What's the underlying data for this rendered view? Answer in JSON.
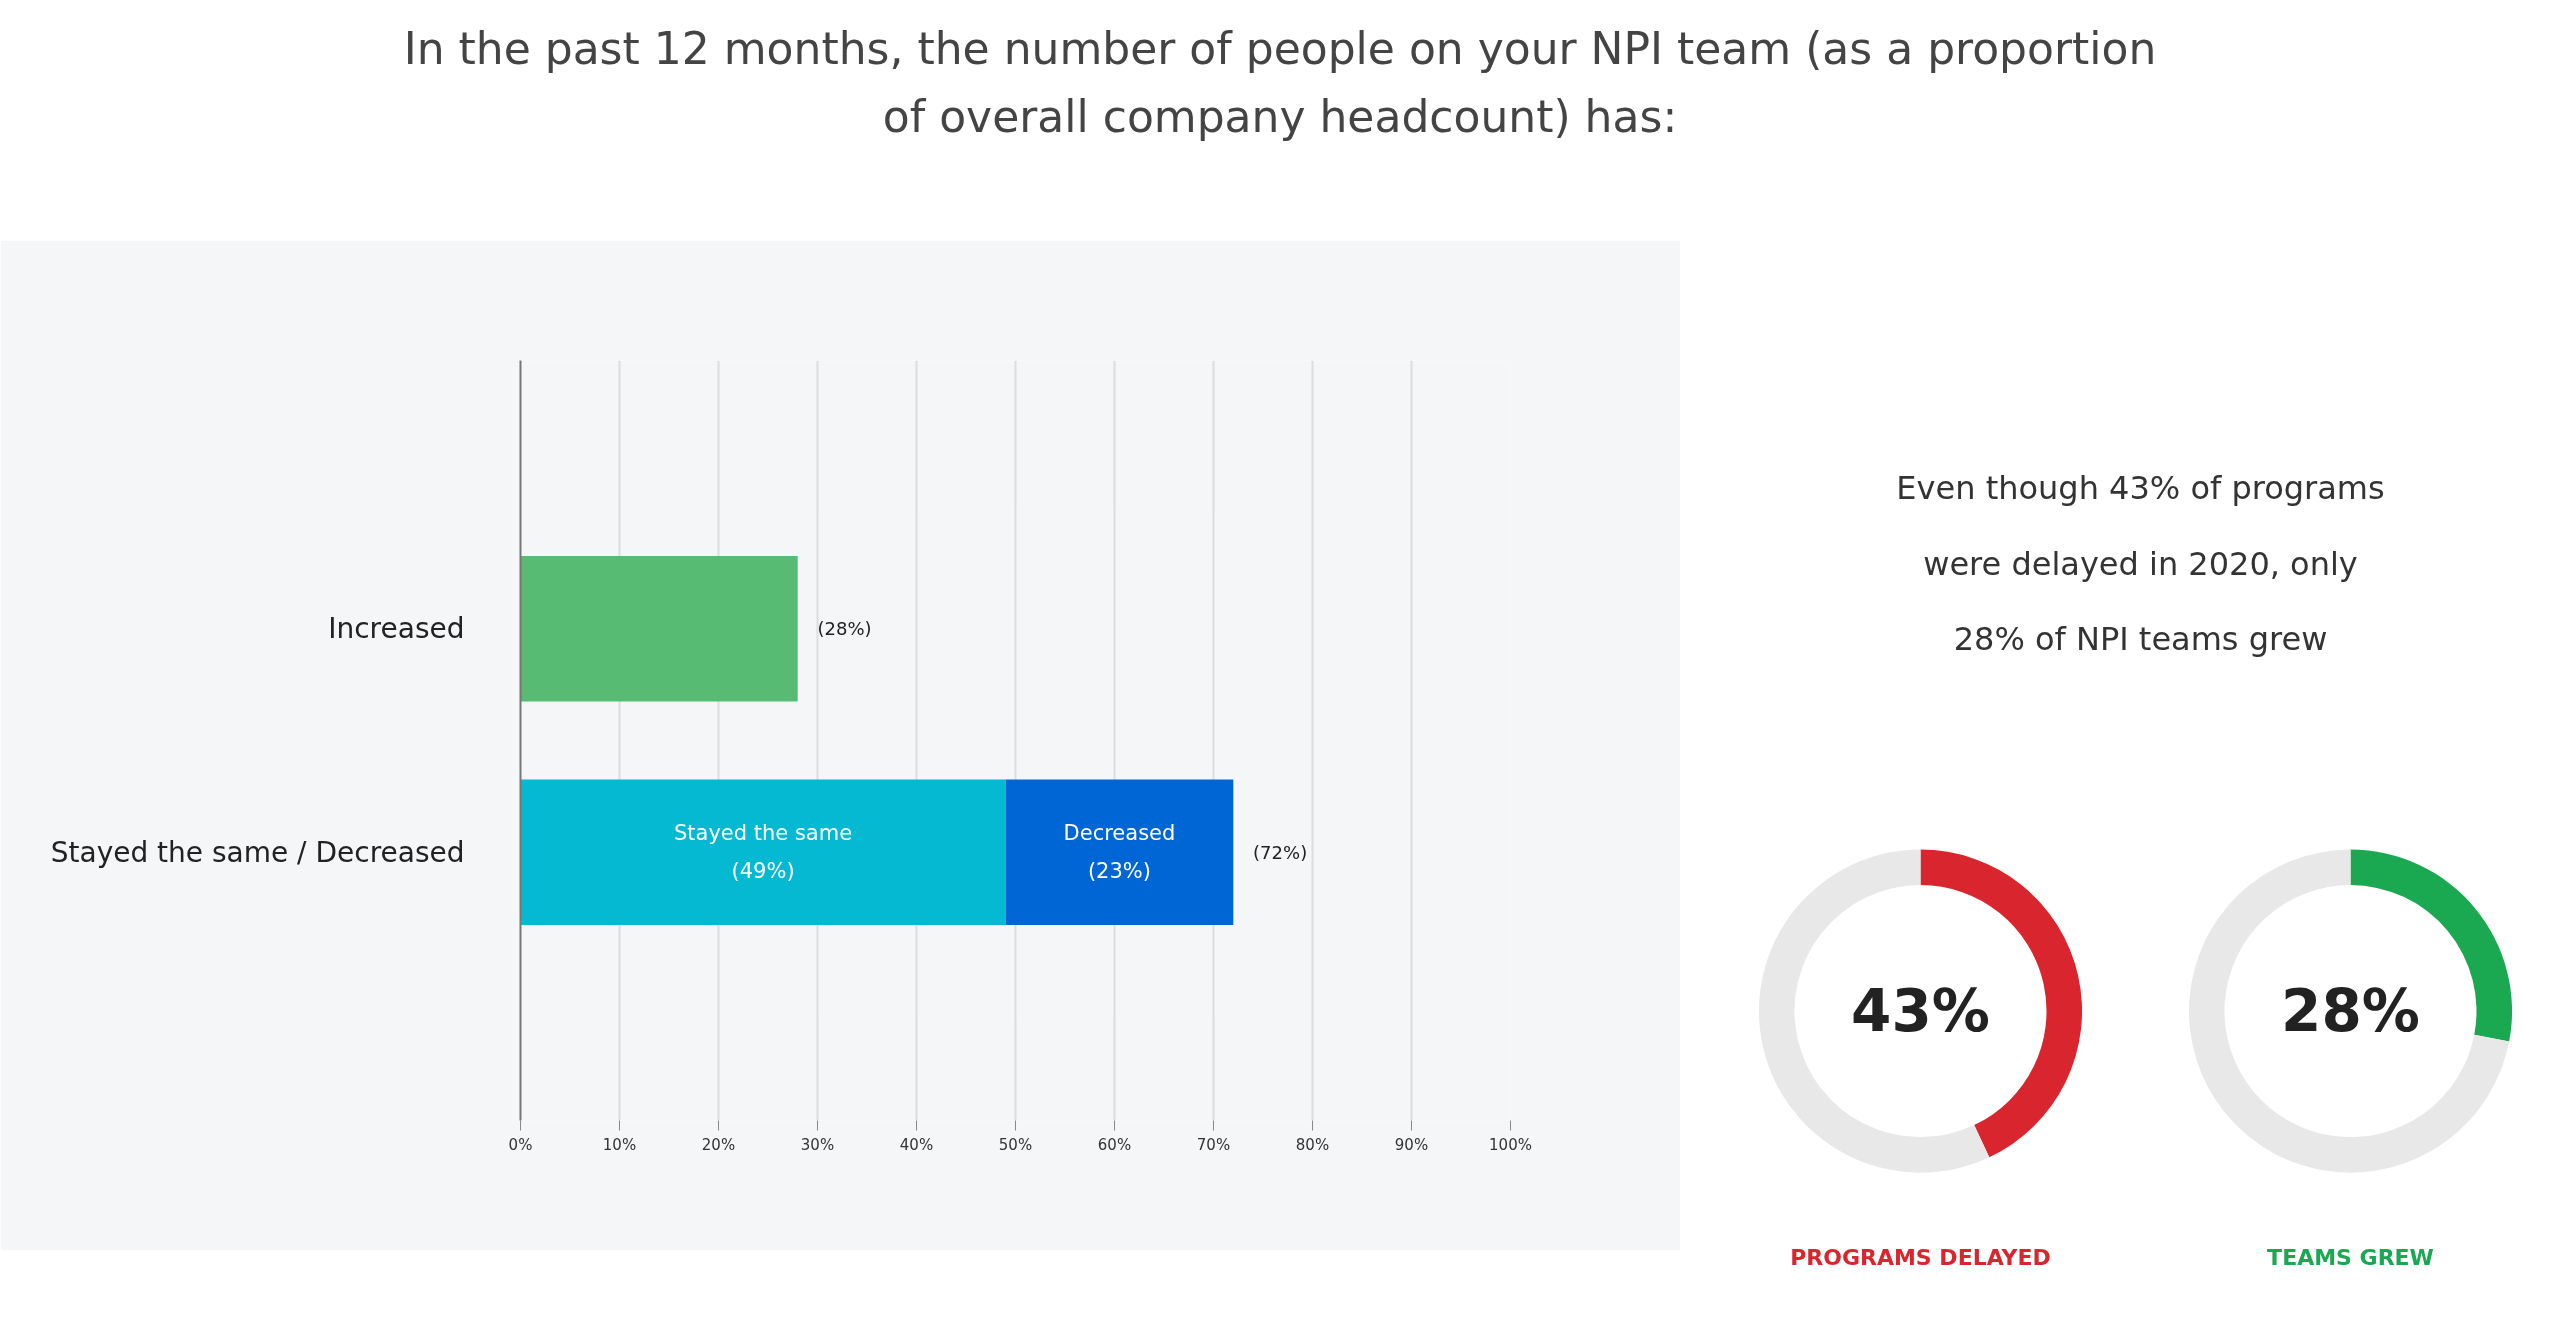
{
  "chart_data": [
    {
      "type": "bar",
      "orientation": "horizontal",
      "stacked": true,
      "title": "In the past 12 months, the number of people on your NPI team (as a proportion of overall company headcount) has:",
      "categories": [
        "Increased",
        "Stayed the same / Decreased"
      ],
      "series": [
        {
          "color": "#58bb74",
          "values": [
            28,
            null
          ]
        },
        {
          "name": "Stayed the same",
          "color": "#05b9d3",
          "values": [
            null,
            49
          ],
          "value_labels": [
            null,
            "(49%)"
          ]
        },
        {
          "name": "Decreased",
          "color": "#0066d6",
          "values": [
            null,
            23
          ],
          "value_labels": [
            null,
            "(23%)"
          ]
        }
      ],
      "totals": [
        "(28%)",
        "(72%)"
      ],
      "xlim": [
        0,
        100
      ],
      "xticks": [
        {
          "value": 0,
          "label": "0%"
        },
        {
          "value": 10,
          "label": "10%"
        },
        {
          "value": 20,
          "label": "20%"
        },
        {
          "value": 30,
          "label": "30%"
        },
        {
          "value": 40,
          "label": "40%"
        },
        {
          "value": 50,
          "label": "50%"
        },
        {
          "value": 60,
          "label": "60%"
        },
        {
          "value": 70,
          "label": "70%"
        },
        {
          "value": 80,
          "label": "80%"
        },
        {
          "value": 90,
          "label": "90%"
        },
        {
          "value": 100,
          "label": "100%"
        }
      ],
      "grid": "x"
    },
    {
      "type": "other",
      "annotations": [
        "Even though 43% of programs",
        "were delayed in 2020, only",
        "28% of NPI teams grew"
      ]
    },
    {
      "type": "donut",
      "categories": [
        null,
        null
      ],
      "values": [
        43,
        57
      ],
      "colors": [
        "#d9262e",
        "#e8e8e8"
      ],
      "value_labels": [
        "43%",
        null
      ],
      "xlabel": "PROGRAMS DELAYED"
    },
    {
      "type": "donut",
      "categories": [
        null,
        null
      ],
      "values": [
        28,
        72
      ],
      "colors": [
        "#1aa851",
        "#e8e8e8"
      ],
      "value_labels": [
        "28%",
        null
      ],
      "xlabel": "TEAMS GREW"
    }
  ]
}
